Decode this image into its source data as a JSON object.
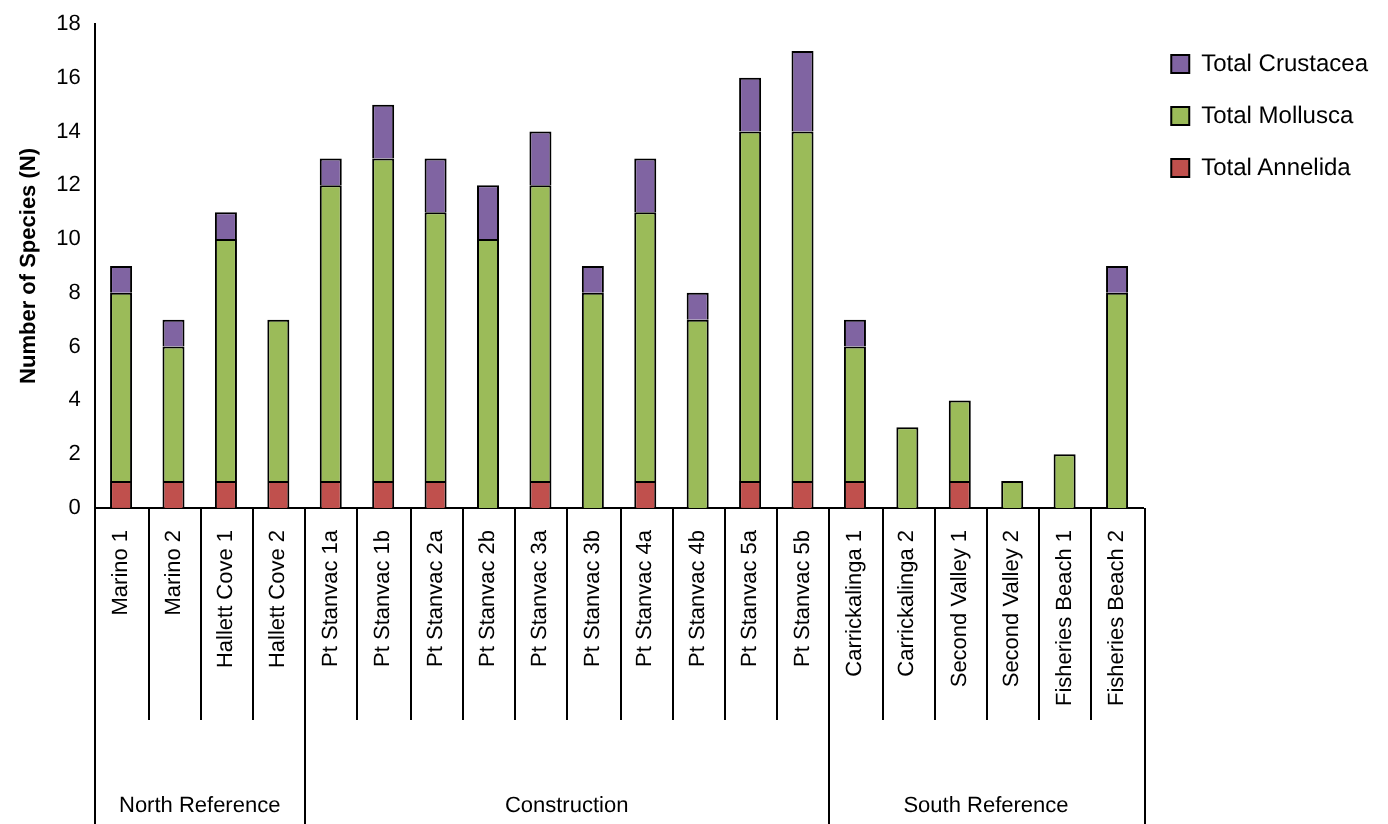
{
  "chart_data": {
    "type": "bar",
    "stacked": true,
    "ylabel": "Number of Species (N)",
    "categories": [
      "Marino 1",
      "Marino 2",
      "Hallett Cove 1",
      "Hallett Cove 2",
      "Pt Stanvac 1a",
      "Pt Stanvac 1b",
      "Pt Stanvac 2a",
      "Pt Stanvac 2b",
      "Pt Stanvac 3a",
      "Pt Stanvac 3b",
      "Pt Stanvac 4a",
      "Pt Stanvac 4b",
      "Pt Stanvac 5a",
      "Pt Stanvac 5b",
      "Carrickalinga 1",
      "Carrickalinga 2",
      "Second Valley 1",
      "Second Valley 2",
      "Fisheries Beach 1",
      "Fisheries Beach 2"
    ],
    "series": [
      {
        "name": "Total Annelida",
        "color": "#c0504d",
        "values": [
          1,
          1,
          1,
          1,
          1,
          1,
          1,
          0,
          1,
          0,
          1,
          0,
          1,
          1,
          1,
          0,
          1,
          0,
          0,
          0
        ]
      },
      {
        "name": "Total Mollusca",
        "color": "#9bbb59",
        "values": [
          7,
          5,
          9,
          6,
          11,
          12,
          10,
          10,
          11,
          8,
          10,
          7,
          13,
          13,
          5,
          3,
          3,
          1,
          2,
          8
        ]
      },
      {
        "name": "Total Crustacea",
        "color": "#8064a2",
        "values": [
          1,
          1,
          1,
          0,
          1,
          2,
          2,
          2,
          2,
          1,
          2,
          1,
          2,
          3,
          1,
          0,
          0,
          0,
          0,
          1
        ]
      }
    ],
    "ylim": [
      0,
      18
    ],
    "yticks": [
      0,
      2,
      4,
      6,
      8,
      10,
      12,
      14,
      16,
      18
    ],
    "grid": false,
    "legend": "right",
    "annotations": [
      "North Reference",
      "Construction",
      "South Reference"
    ]
  }
}
